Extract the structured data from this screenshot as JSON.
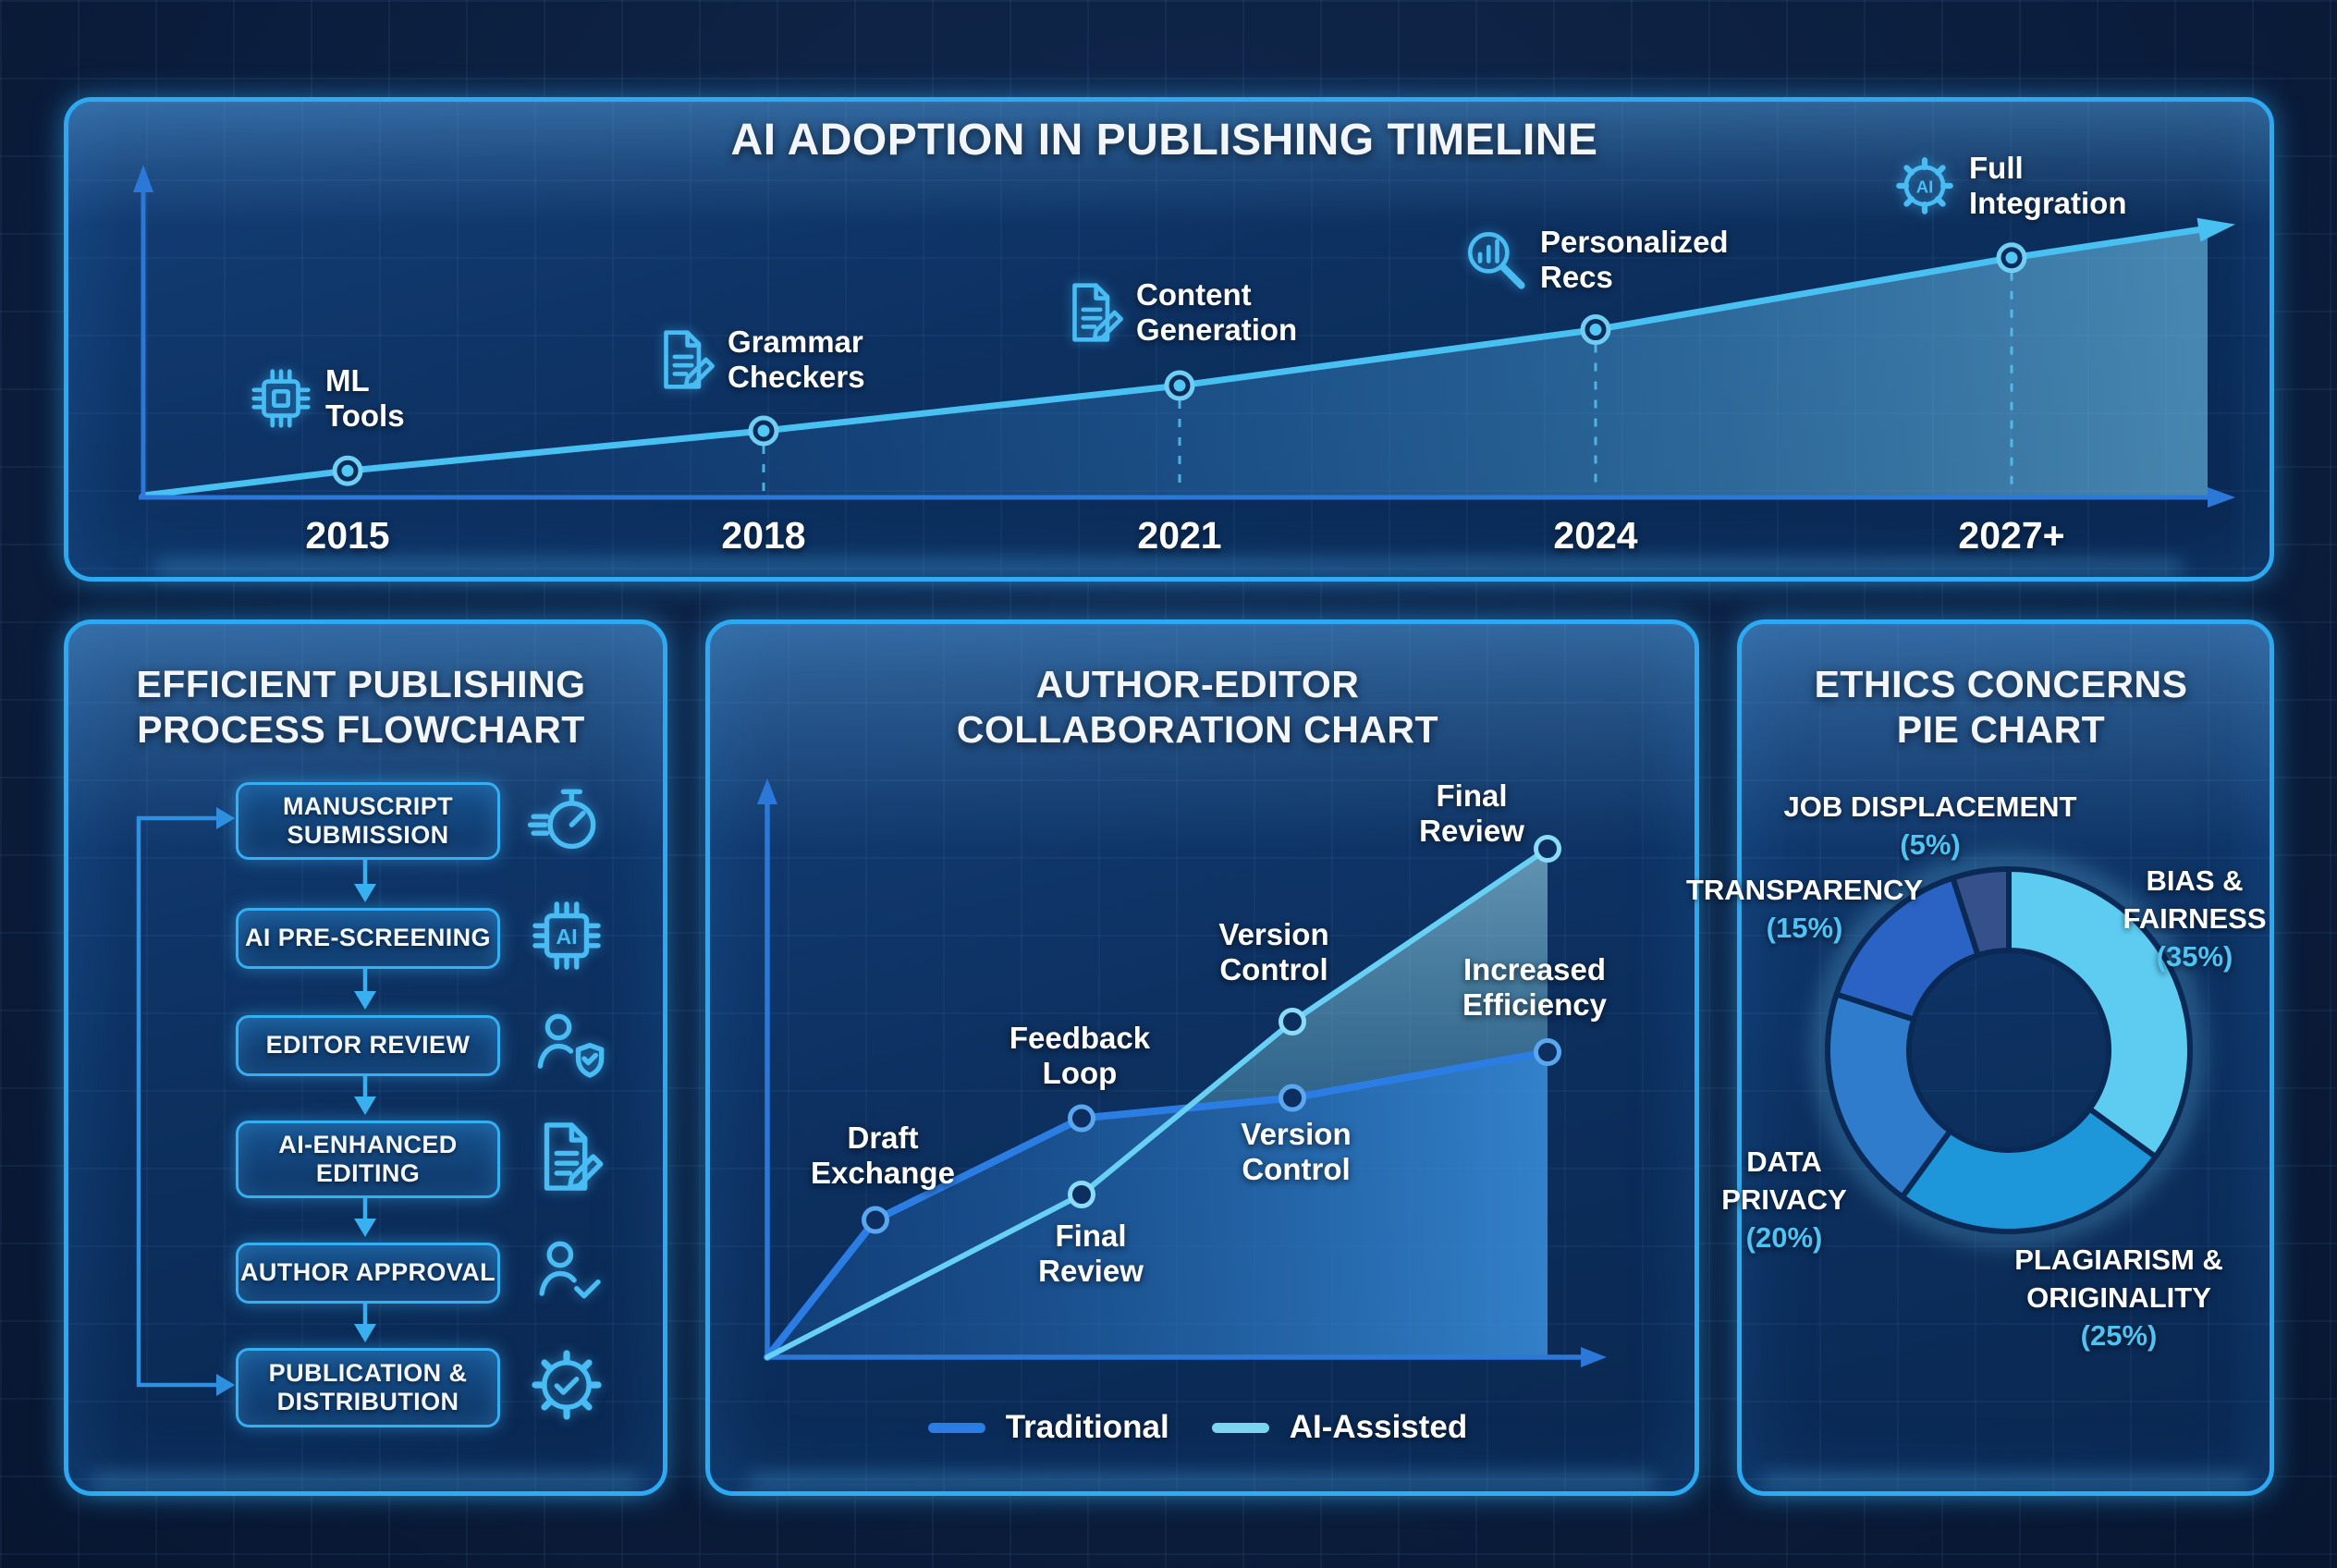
{
  "colors": {
    "accent": "#2da9f2",
    "bright_cyan": "#49c0f2",
    "axis_blue": "#2b78d8",
    "traditional_line": "#2b7de3",
    "ai_line": "#68cff5",
    "pct_text": "#4fc3f3"
  },
  "timeline": {
    "title": "AI ADOPTION IN PUBLISHING TIMELINE",
    "milestones": [
      {
        "year": "2015",
        "label_lines": [
          "ML",
          "Tools"
        ],
        "icon": "chip-icon",
        "value": 10
      },
      {
        "year": "2018",
        "label_lines": [
          "Grammar",
          "Checkers"
        ],
        "icon": "document-pencil-icon",
        "value": 25
      },
      {
        "year": "2021",
        "label_lines": [
          "Content",
          "Generation"
        ],
        "icon": "document-pencil-icon",
        "value": 42
      },
      {
        "year": "2024",
        "label_lines": [
          "Personalized",
          "Recs"
        ],
        "icon": "magnifier-stats-icon",
        "value": 63
      },
      {
        "year": "2027+",
        "label_lines": [
          "Full",
          "Integration"
        ],
        "icon": "gear-ai-icon",
        "value": 90
      }
    ]
  },
  "flowchart": {
    "title_lines": [
      "EFFICIENT PUBLISHING",
      "PROCESS FLOWCHART"
    ],
    "steps": [
      {
        "label_lines": [
          "MANUSCRIPT",
          "SUBMISSION"
        ],
        "icon": "stopwatch-icon"
      },
      {
        "label_lines": [
          "AI PRE-SCREENING"
        ],
        "icon": "ai-chip-icon"
      },
      {
        "label_lines": [
          "EDITOR REVIEW"
        ],
        "icon": "person-shield-icon"
      },
      {
        "label_lines": [
          "AI-ENHANCED",
          "EDITING"
        ],
        "icon": "document-pencil-icon"
      },
      {
        "label_lines": [
          "AUTHOR APPROVAL"
        ],
        "icon": "person-check-icon"
      },
      {
        "label_lines": [
          "PUBLICATION &",
          "DISTRIBUTION"
        ],
        "icon": "gear-check-icon"
      }
    ]
  },
  "collaboration": {
    "title_lines": [
      "AUTHOR-EDITOR",
      "COLLABORATION CHART"
    ],
    "labels": {
      "draft_exchange_lines": [
        "Draft",
        "Exchange"
      ],
      "feedback_loop_lines": [
        "Feedback",
        "Loop"
      ],
      "final_review_lower_lines": [
        "Final",
        "Review"
      ],
      "version_control_upper_lines": [
        "Version",
        "Control"
      ],
      "version_control_lower_lines": [
        "Version",
        "Control"
      ],
      "increased_efficiency_lines": [
        "Increased",
        "Efficiency"
      ],
      "final_review_top_lines": [
        "Final",
        "Review"
      ]
    },
    "legend": [
      {
        "label": "Traditional",
        "color": "#2b7de3"
      },
      {
        "label": "AI-Assisted",
        "color": "#7cd4ef"
      }
    ]
  },
  "ethics": {
    "title_lines": [
      "ETHICS CONCERNS",
      "PIE CHART"
    ],
    "slices": [
      {
        "name_lines": [
          "BIAS &",
          "FAIRNESS"
        ],
        "pct": 35,
        "pct_label": "(35%)",
        "color": "#5ecbf1"
      },
      {
        "name_lines": [
          "PLAGIARISM &",
          "ORIGINALITY"
        ],
        "pct": 25,
        "pct_label": "(25%)",
        "color": "#1d97d9"
      },
      {
        "name_lines": [
          "DATA",
          "PRIVACY"
        ],
        "pct": 20,
        "pct_label": "(20%)",
        "color": "#2e7ccb"
      },
      {
        "name_lines": [
          "TRANSPARENCY"
        ],
        "pct": 15,
        "pct_label": "(15%)",
        "color": "#2a63c3"
      },
      {
        "name_lines": [
          "JOB DISPLACEMENT"
        ],
        "pct": 5,
        "pct_label": "(5%)",
        "color": "#36508c"
      }
    ]
  },
  "chart_data": [
    {
      "type": "line",
      "title": "AI ADOPTION IN PUBLISHING TIMELINE",
      "x": [
        "2015",
        "2018",
        "2021",
        "2024",
        "2027+"
      ],
      "values": [
        10,
        25,
        42,
        63,
        90
      ],
      "annotations": [
        "ML Tools",
        "Grammar Checkers",
        "Content Generation",
        "Personalized Recs",
        "Full Integration"
      ],
      "xlabel": "",
      "ylabel": "",
      "ylim": [
        0,
        100
      ],
      "grid": false,
      "legend_position": "none"
    },
    {
      "type": "line",
      "title": "AUTHOR-EDITOR COLLABORATION CHART",
      "x": [
        0,
        1,
        2,
        3,
        4
      ],
      "series": [
        {
          "name": "Traditional",
          "x": [
            0,
            1,
            2,
            3,
            4
          ],
          "values": [
            0,
            27,
            47,
            51,
            60
          ],
          "point_labels": [
            "",
            "Draft Exchange",
            "Feedback Loop",
            "Version Control",
            "Increased Efficiency"
          ]
        },
        {
          "name": "AI-Assisted",
          "x": [
            0,
            2,
            3,
            4
          ],
          "values": [
            0,
            32,
            66,
            100
          ],
          "point_labels": [
            "",
            "Final Review",
            "Version Control",
            "Final Review"
          ]
        }
      ],
      "xlabel": "",
      "ylabel": "",
      "ylim": [
        0,
        105
      ],
      "grid": false,
      "legend_position": "bottom"
    },
    {
      "type": "pie",
      "title": "ETHICS CONCERNS PIE CHART",
      "categories": [
        "BIAS & FAIRNESS",
        "PLAGIARISM & ORIGINALITY",
        "DATA PRIVACY",
        "TRANSPARENCY",
        "JOB DISPLACEMENT"
      ],
      "values": [
        35,
        25,
        20,
        15,
        5
      ],
      "donut": true,
      "start_angle_deg": 0,
      "direction": "clockwise"
    }
  ]
}
